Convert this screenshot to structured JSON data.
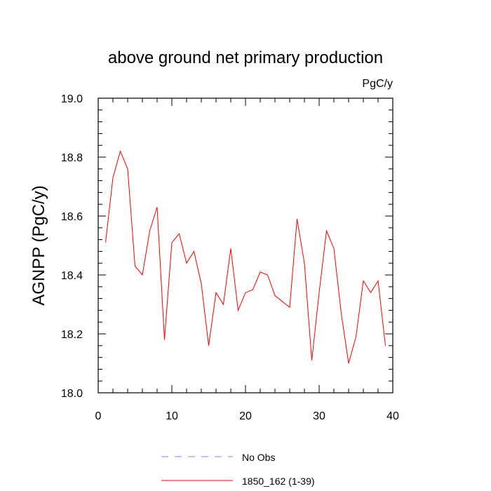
{
  "chart_data": {
    "type": "line",
    "title": "above ground net primary production",
    "units": "PgC/y",
    "ylabel": "AGNPP  (PgC/y)",
    "xlabel": "",
    "xlim": [
      0,
      40
    ],
    "ylim": [
      18.0,
      19.0
    ],
    "x_ticks": [
      0,
      10,
      20,
      30,
      40
    ],
    "x_tick_labels": [
      "0",
      "10",
      "20",
      "30",
      "40"
    ],
    "y_ticks": [
      18.0,
      18.2,
      18.4,
      18.6,
      18.8,
      19.0
    ],
    "y_tick_labels": [
      "18.0",
      "18.2",
      "18.4",
      "18.6",
      "18.8",
      "19.0"
    ],
    "grid": false,
    "legend_position": "bottom",
    "series": [
      {
        "name": "No Obs",
        "color": "#8080ff",
        "dashed": true,
        "x": [],
        "values": []
      },
      {
        "name": "1850_162 (1-39)",
        "color": "#ff0000",
        "dashed": false,
        "x": [
          1,
          2,
          3,
          4,
          5,
          6,
          7,
          8,
          9,
          10,
          11,
          12,
          13,
          14,
          15,
          16,
          17,
          18,
          19,
          20,
          21,
          22,
          23,
          24,
          25,
          26,
          27,
          28,
          29,
          30,
          31,
          32,
          33,
          34,
          35,
          36,
          37,
          38,
          39
        ],
        "values": [
          18.51,
          18.73,
          18.82,
          18.76,
          18.43,
          18.4,
          18.55,
          18.63,
          18.18,
          18.51,
          18.54,
          18.44,
          18.48,
          18.37,
          18.16,
          18.34,
          18.3,
          18.49,
          18.28,
          18.34,
          18.35,
          18.41,
          18.4,
          18.33,
          18.31,
          18.29,
          18.59,
          18.44,
          18.11,
          18.34,
          18.55,
          18.49,
          18.27,
          18.1,
          18.19,
          18.38,
          18.34,
          18.38,
          18.16
        ]
      }
    ]
  }
}
